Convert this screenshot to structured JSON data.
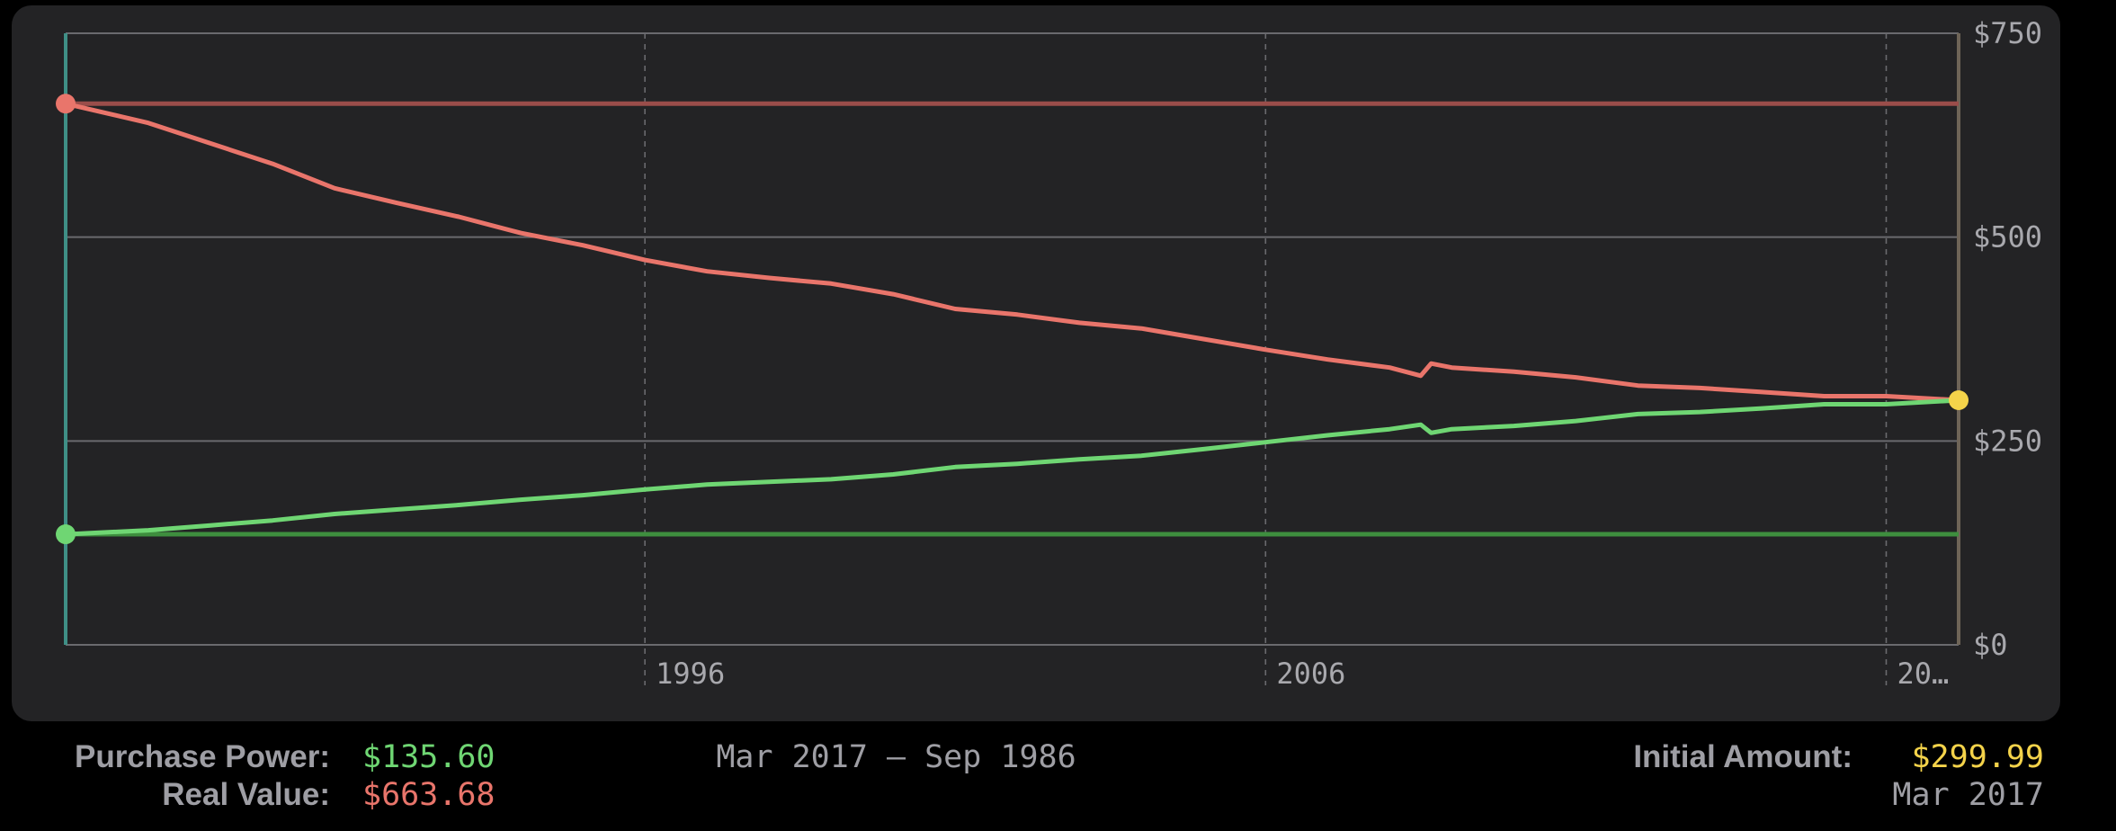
{
  "chart_data": {
    "type": "line",
    "x_range": [
      "1986-09",
      "2017-03"
    ],
    "x_ticks": [
      {
        "date": "1996-01",
        "label": "1996"
      },
      {
        "date": "2006-01",
        "label": "2006"
      },
      {
        "date": "2016-01",
        "label": "20…"
      }
    ],
    "ylim": [
      0,
      750
    ],
    "y_ticks": [
      {
        "value": 750,
        "label": "$750"
      },
      {
        "value": 500,
        "label": "$500"
      },
      {
        "value": 250,
        "label": "$250"
      },
      {
        "value": 0,
        "label": "$0"
      }
    ],
    "reference_lines": [
      {
        "value": 663.68,
        "color": "#9a4d4a"
      },
      {
        "value": 135.6,
        "color": "#3e8e3e"
      }
    ],
    "series": [
      {
        "color": "#e9756b",
        "x": [
          "1986-09",
          "1988-01",
          "1989-01",
          "1990-01",
          "1991-01",
          "1992-01",
          "1993-01",
          "1994-01",
          "1995-01",
          "1996-01",
          "1997-01",
          "1998-01",
          "1999-01",
          "2000-01",
          "2001-01",
          "2002-01",
          "2003-01",
          "2004-01",
          "2005-01",
          "2006-01",
          "2007-01",
          "2008-01",
          "2008-07",
          "2008-09",
          "2009-01",
          "2010-01",
          "2011-01",
          "2012-01",
          "2013-01",
          "2014-01",
          "2015-01",
          "2016-01",
          "2017-03"
        ],
        "y": [
          663.68,
          640,
          615,
          590,
          560,
          542,
          525,
          505,
          490,
          472,
          458,
          450,
          443,
          430,
          412,
          405,
          395,
          388,
          375,
          362,
          350,
          340,
          330,
          345,
          340,
          335,
          328,
          318,
          315,
          310,
          305,
          305,
          299.99
        ]
      },
      {
        "color": "#6fd673",
        "x": [
          "1986-09",
          "1988-01",
          "1989-01",
          "1990-01",
          "1991-01",
          "1992-01",
          "1993-01",
          "1994-01",
          "1995-01",
          "1996-01",
          "1997-01",
          "1998-01",
          "1999-01",
          "2000-01",
          "2001-01",
          "2002-01",
          "2003-01",
          "2004-01",
          "2005-01",
          "2006-01",
          "2007-01",
          "2008-01",
          "2008-07",
          "2008-09",
          "2009-01",
          "2010-01",
          "2011-01",
          "2012-01",
          "2013-01",
          "2014-01",
          "2015-01",
          "2016-01",
          "2017-03"
        ],
        "y": [
          135.6,
          140.5,
          146.5,
          152.5,
          160.5,
          166,
          171.5,
          178,
          183.5,
          190.5,
          196.5,
          200,
          203,
          209,
          218,
          222,
          227.5,
          232,
          240,
          248.5,
          257,
          264.5,
          270,
          260,
          264.5,
          268.5,
          274.5,
          283,
          285.5,
          290,
          295,
          295,
          299.99
        ]
      }
    ],
    "markers": [
      {
        "x": "1986-09",
        "y": 663.68,
        "color": "#e9756b"
      },
      {
        "x": "1986-09",
        "y": 135.6,
        "color": "#6fd673"
      },
      {
        "x": "2017-03",
        "y": 299.99,
        "color": "#f4d34a"
      }
    ]
  },
  "footer": {
    "purchase_power_label": "Purchase Power:",
    "purchase_power_value": "$135.60",
    "real_value_label": "Real Value:",
    "real_value_value": "$663.68",
    "date_range": "Mar 2017 – Sep 1986",
    "initial_amount_label": "Initial Amount:",
    "initial_amount_value": "$299.99",
    "initial_date": "Mar 2017"
  },
  "colors": {
    "purchase_power": "#6fd673",
    "real_value": "#e9756b",
    "initial_amount": "#f4d34a",
    "left_axis": "#3f8f86",
    "right_axis": "#6e6457"
  }
}
